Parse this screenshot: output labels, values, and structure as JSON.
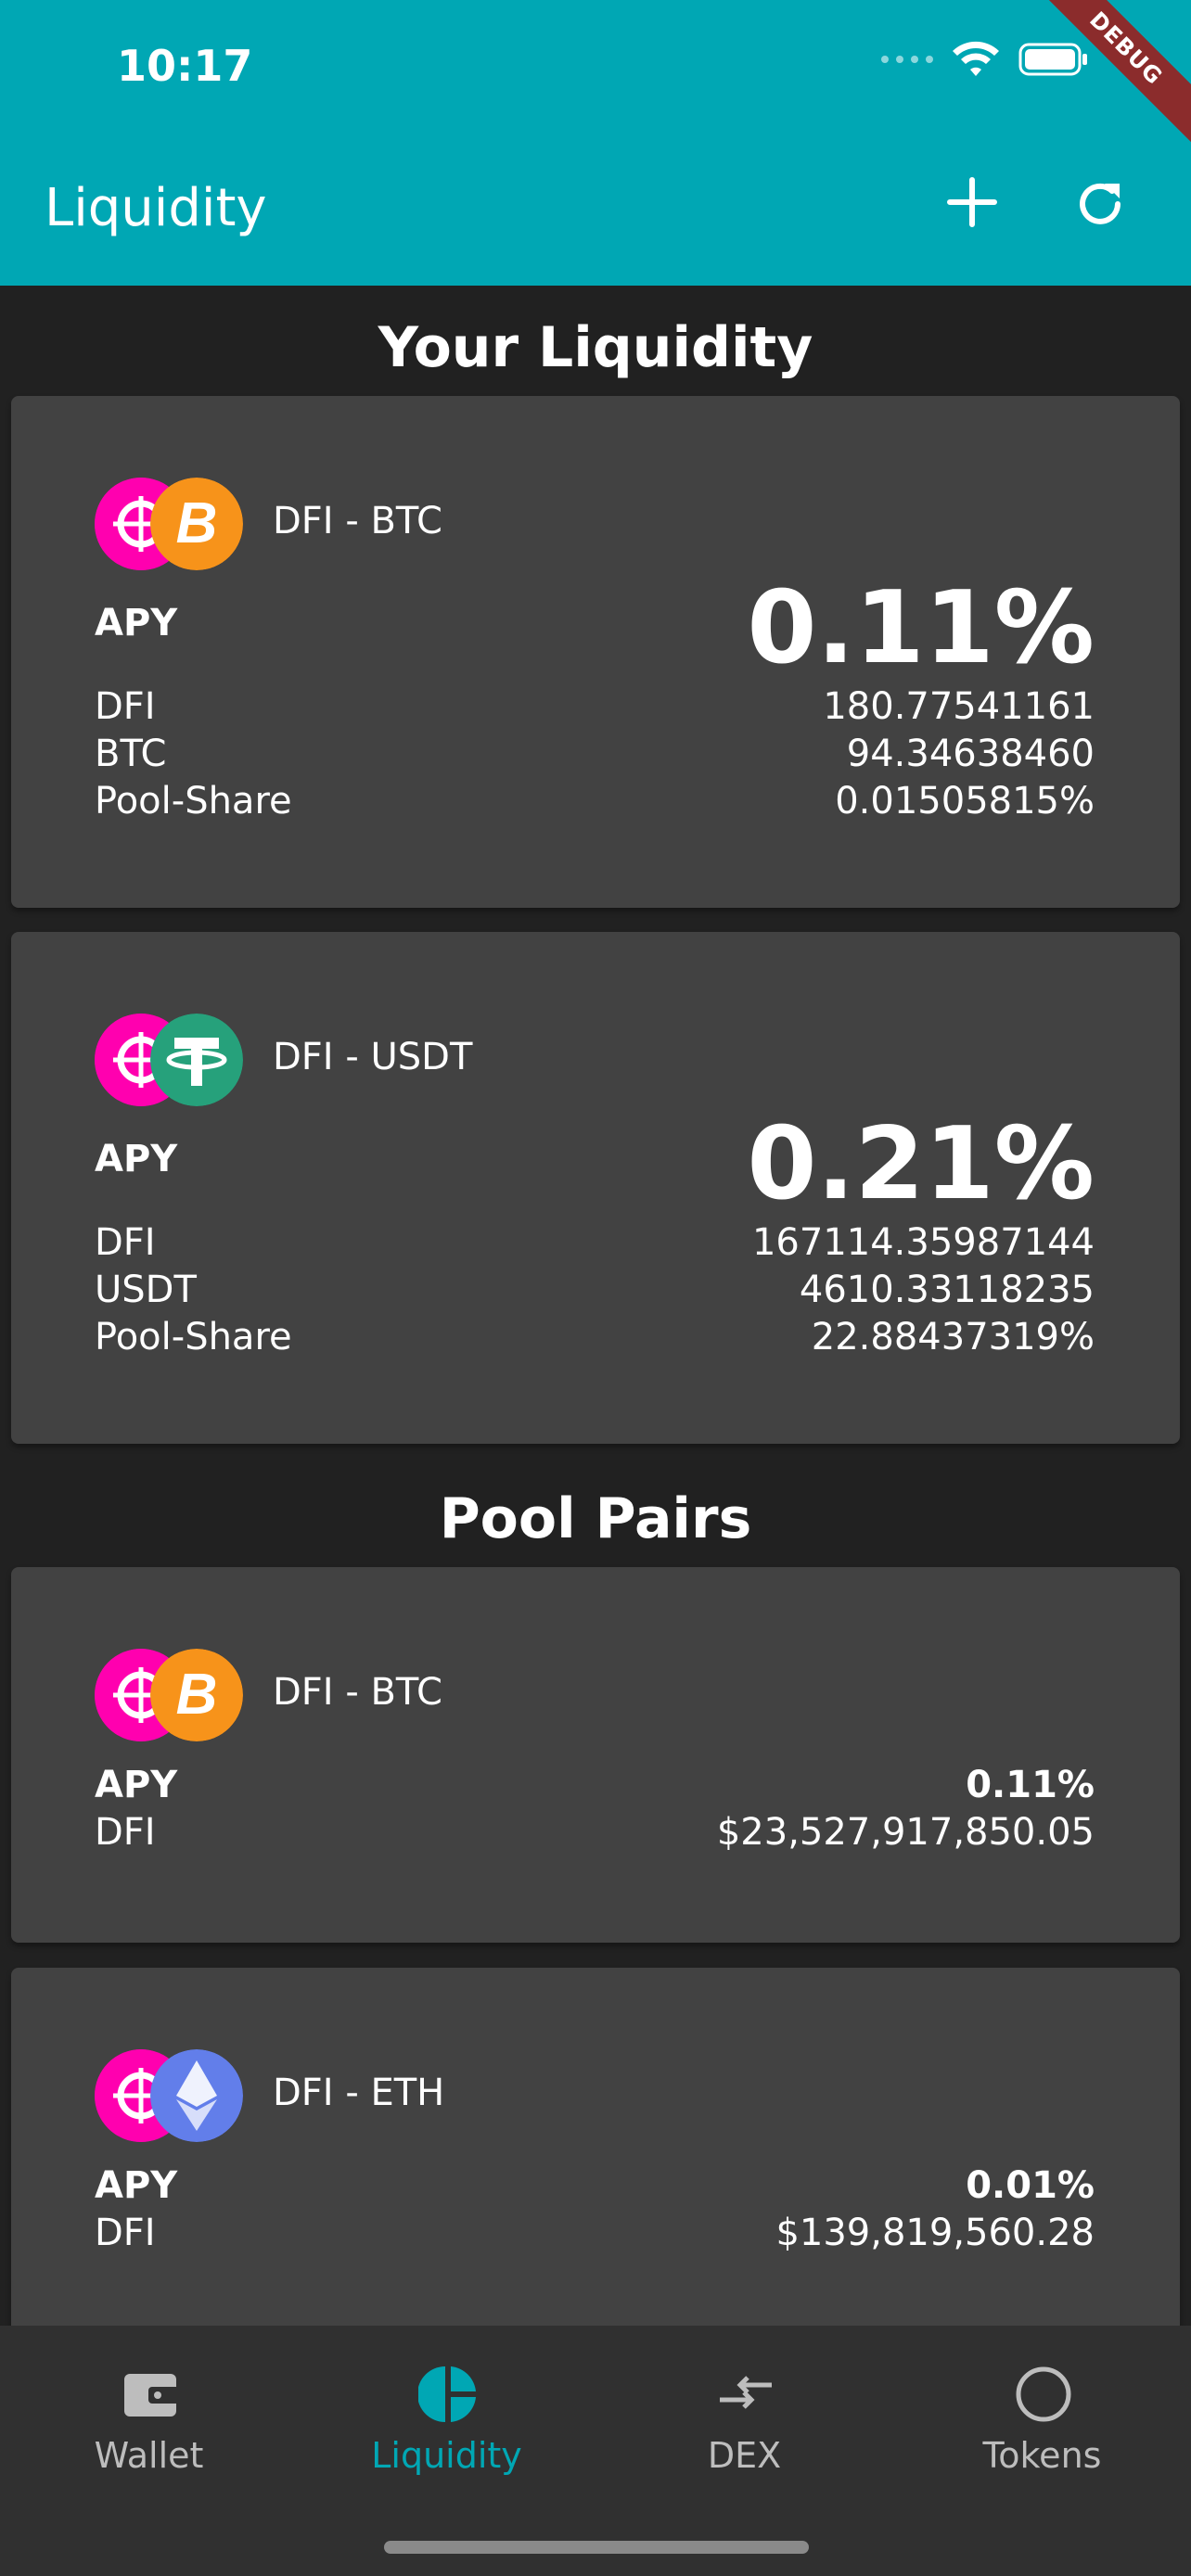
{
  "status_bar": {
    "time": "10:17",
    "debug_label": "DEBUG"
  },
  "app_bar": {
    "title": "Liquidity"
  },
  "your_liquidity": {
    "title": "Your Liquidity",
    "cards": [
      {
        "pair": "DFI - BTC",
        "apy_label": "APY",
        "apy": "0.11%",
        "rows": [
          {
            "label": "DFI",
            "value": "180.77541161"
          },
          {
            "label": "BTC",
            "value": "94.34638460"
          },
          {
            "label": "Pool-Share",
            "value": "0.01505815%"
          }
        ]
      },
      {
        "pair": "DFI - USDT",
        "apy_label": "APY",
        "apy": "0.21%",
        "rows": [
          {
            "label": "DFI",
            "value": "167114.35987144"
          },
          {
            "label": "USDT",
            "value": "4610.33118235"
          },
          {
            "label": "Pool-Share",
            "value": "22.88437319%"
          }
        ]
      }
    ]
  },
  "pool_pairs": {
    "title": "Pool Pairs",
    "cards": [
      {
        "pair": "DFI - BTC",
        "apy_label": "APY",
        "apy": "0.11%",
        "liq_label": "DFI",
        "liq_value": "$23,527,917,850.05"
      },
      {
        "pair": "DFI - ETH",
        "apy_label": "APY",
        "apy": "0.01%",
        "liq_label": "DFI",
        "liq_value": "$139,819,560.28"
      }
    ]
  },
  "bottom_nav": {
    "items": [
      {
        "label": "Wallet",
        "icon": "wallet-icon"
      },
      {
        "label": "Liquidity",
        "icon": "pie-chart-icon",
        "active": true
      },
      {
        "label": "DEX",
        "icon": "swap-arrows-icon"
      },
      {
        "label": "Tokens",
        "icon": "circle-icon"
      }
    ]
  },
  "colors": {
    "app_bar": "#00A7B4",
    "background": "#212121",
    "card": "#424242",
    "dfi": "#FF00AF",
    "btc": "#F7931A",
    "usdt": "#26A17B",
    "eth": "#627EEA"
  }
}
